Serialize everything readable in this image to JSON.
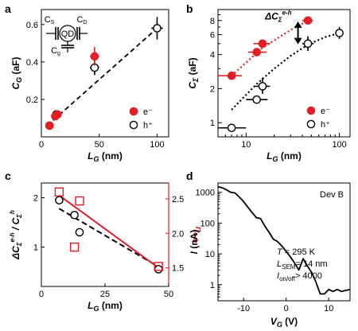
{
  "figure": {
    "panels": [
      {
        "id": "a",
        "label": "a"
      },
      {
        "id": "b",
        "label": "b"
      },
      {
        "id": "c",
        "label": "c"
      },
      {
        "id": "d",
        "label": "d"
      }
    ]
  },
  "colors": {
    "electron": "#e31e24",
    "hole": "#000000",
    "fit": "#000000",
    "red_axis": "#e31e24"
  },
  "chart_data": [
    {
      "panel": "a",
      "type": "scatter",
      "xlabel": "L_G (nm)",
      "ylabel": "C_G (aF)",
      "xlim": [
        0,
        110
      ],
      "ylim": [
        0,
        0.68
      ],
      "xticks": [
        "0",
        "50",
        "100"
      ],
      "yticks": [
        "0.2",
        "0.4",
        "0.6"
      ],
      "legend": {
        "entries": [
          "e⁻",
          "h⁺"
        ],
        "placement": "bottom-right"
      },
      "inset": {
        "labels": [
          "C_S",
          "QD",
          "C_D",
          "C_g"
        ]
      },
      "series": [
        {
          "name": "e⁻",
          "marker": "filled-circle",
          "points": [
            {
              "x": 7,
              "y": 0.06,
              "xerr": 2,
              "yerr": 0.01
            },
            {
              "x": 12,
              "y": 0.11,
              "xerr": 3,
              "yerr": 0.01
            },
            {
              "x": 14,
              "y": 0.12,
              "xerr": 3,
              "yerr": 0.01
            },
            {
              "x": 46,
              "y": 0.43,
              "xerr": 4,
              "yerr": 0.05
            }
          ]
        },
        {
          "name": "h⁺",
          "marker": "open-circle",
          "points": [
            {
              "x": 7,
              "y": 0.06,
              "xerr": 2,
              "yerr": 0.01
            },
            {
              "x": 13,
              "y": 0.12,
              "xerr": 3,
              "yerr": 0.01
            },
            {
              "x": 46,
              "y": 0.37,
              "xerr": 4,
              "yerr": 0.04
            },
            {
              "x": 100,
              "y": 0.58,
              "xerr": 5,
              "yerr": 0.06
            }
          ]
        },
        {
          "name": "",
          "kind": "dashed-fit",
          "line": [
            [
              5,
              0.06
            ],
            [
              100,
              0.58
            ]
          ]
        }
      ]
    },
    {
      "panel": "b",
      "type": "scatter",
      "scale": "log-log",
      "xlabel": "L_G (nm)",
      "ylabel": "C_Σ (aF)",
      "xlim": [
        5,
        130
      ],
      "ylim": [
        0.75,
        10
      ],
      "xticks": [
        "10",
        "100"
      ],
      "yticks": [
        "1",
        "2",
        "4",
        "6",
        "8"
      ],
      "annotation": "ΔC_Σ^{e-h}",
      "legend": {
        "entries": [
          "e⁻",
          "h⁺"
        ],
        "placement": "bottom-right"
      },
      "series": [
        {
          "name": "e⁻",
          "marker": "filled-circle",
          "points": [
            {
              "x": 7,
              "y": 2.6,
              "xlo": 5,
              "xhi": 9
            },
            {
              "x": 13,
              "y": 4.2,
              "xlo": 10.5,
              "xhi": 16.5
            },
            {
              "x": 15,
              "y": 5.0,
              "xlo": 12,
              "xhi": 18
            },
            {
              "x": 46,
              "y": 8.0,
              "xlo": 40,
              "xhi": 52
            }
          ]
        },
        {
          "name": "h⁺",
          "marker": "open-circle",
          "points": [
            {
              "x": 7,
              "y": 0.9,
              "xlo": 5,
              "xhi": 10
            },
            {
              "x": 13,
              "y": 1.6,
              "xlo": 10,
              "xhi": 17
            },
            {
              "x": 15,
              "y": 2.1,
              "xlo": 12.5,
              "xhi": 18,
              "ylo": 1.8,
              "yhi": 2.5
            },
            {
              "x": 46,
              "y": 5.0,
              "xlo": 40,
              "xhi": 53,
              "ylo": 4.3,
              "yhi": 5.8
            },
            {
              "x": 100,
              "y": 6.2,
              "xlo": 92,
              "xhi": 108,
              "ylo": 5.5,
              "yhi": 7.0
            }
          ]
        },
        {
          "name": "",
          "kind": "dotted-fit-e",
          "line": [
            [
              7,
              2.6
            ],
            [
              15,
              4.6
            ],
            [
              30,
              6.6
            ],
            [
              46,
              8.0
            ]
          ]
        },
        {
          "name": "",
          "kind": "dotted-fit-h",
          "line": [
            [
              7,
              1.3
            ],
            [
              13,
              2.2
            ],
            [
              20,
              3.0
            ],
            [
              30,
              3.9
            ],
            [
              46,
              4.9
            ],
            [
              70,
              5.7
            ],
            [
              100,
              6.2
            ]
          ]
        }
      ]
    },
    {
      "panel": "c",
      "type": "scatter",
      "xlabel": "L_G (nm)",
      "ylabel": "ΔC_Σ^{e-h} / C_Σ^h",
      "ylabel_right": "η_{e-h}",
      "xlim": [
        0,
        50
      ],
      "ylim": [
        0.2,
        2.3
      ],
      "ylim_right": [
        1.23,
        2.73
      ],
      "xticks": [
        "0",
        "25",
        "50"
      ],
      "yticks": [
        "1",
        "2"
      ],
      "yticks_right": [
        "1.5",
        "2.0",
        "2.5"
      ],
      "series": [
        {
          "name": "",
          "axis": "left",
          "marker": "open-circle",
          "points": [
            {
              "x": 7,
              "y": 1.95
            },
            {
              "x": 13,
              "y": 1.65
            },
            {
              "x": 15,
              "y": 1.3
            },
            {
              "x": 46,
              "y": 0.55
            }
          ]
        },
        {
          "name": "",
          "axis": "right",
          "marker": "open-square",
          "points": [
            {
              "x": 7,
              "y": 2.6
            },
            {
              "x": 13,
              "y": 1.8
            },
            {
              "x": 15,
              "y": 2.47
            },
            {
              "x": 46,
              "y": 1.52
            }
          ]
        },
        {
          "name": "",
          "kind": "dashed-fit-left",
          "line": [
            [
              7,
              1.78
            ],
            [
              46,
              0.6
            ]
          ]
        },
        {
          "name": "",
          "kind": "solid-fit-right",
          "line": [
            [
              7,
              2.55
            ],
            [
              46,
              1.5
            ]
          ]
        }
      ]
    },
    {
      "panel": "d",
      "type": "line",
      "scale": "log-y",
      "xlabel": "V_G (V)",
      "ylabel": "I (nA)",
      "xlim": [
        -16,
        15
      ],
      "ylim": [
        0.3,
        2000
      ],
      "xticks": [
        "-10",
        "0",
        "10"
      ],
      "yticks": [
        "1",
        "10",
        "100",
        "1000"
      ],
      "annotations": [
        "Dev B",
        "T = 295 K",
        "L_SEM = 14 nm",
        "I_on/off > 4000"
      ],
      "x": [
        -16,
        -15,
        -14,
        -13,
        -12,
        -11,
        -10,
        -9,
        -8,
        -7,
        -6,
        -5,
        -4,
        -3,
        -2,
        -1,
        0,
        1,
        2,
        3,
        4,
        5,
        6,
        7,
        8,
        9,
        10,
        11,
        12,
        13,
        14,
        15
      ],
      "y": [
        1500,
        1400,
        1200,
        1000,
        950,
        700,
        500,
        330,
        220,
        150,
        140,
        80,
        50,
        30,
        25,
        18,
        12,
        8,
        5,
        3,
        7,
        4,
        2.5,
        1.2,
        0.5,
        0.5,
        0.7,
        0.6,
        0.7,
        0.6,
        0.65,
        0.7
      ]
    }
  ]
}
